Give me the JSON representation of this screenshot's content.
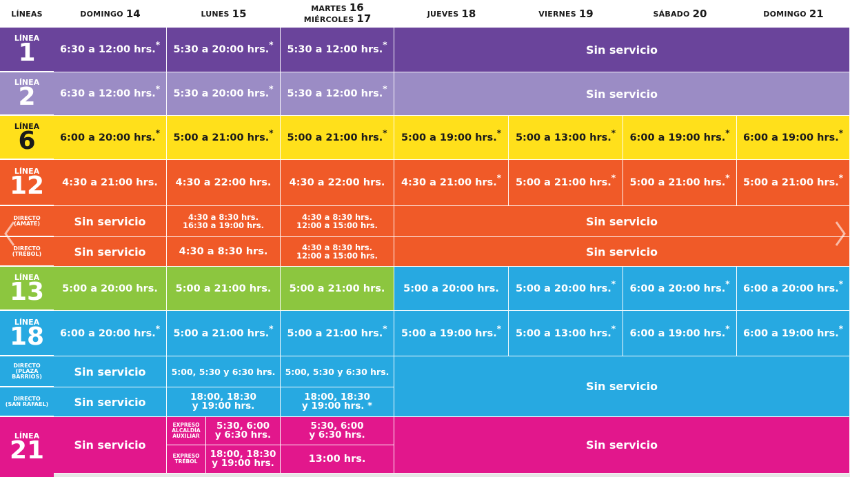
{
  "headers": {
    "lineas": "LÍNEAS",
    "dom14": {
      "day": "DOMINGO",
      "num": "14"
    },
    "lun15": {
      "day": "LUNES",
      "num": "15"
    },
    "mar16": {
      "day": "MARTES",
      "num": "16"
    },
    "mie17": {
      "day": "MIÉRCOLES",
      "num": "17"
    },
    "jue18": {
      "day": "JUEVES",
      "num": "18"
    },
    "vie19": {
      "day": "VIERNES",
      "num": "19"
    },
    "sab20": {
      "day": "SÁBADO",
      "num": "20"
    },
    "dom21": {
      "day": "DOMINGO",
      "num": "21"
    }
  },
  "labels": {
    "linea": "LÍNEA",
    "l1": "1",
    "l2": "2",
    "l6": "6",
    "l12": "12",
    "l13": "13",
    "l18": "18",
    "l21": "21",
    "directo_amate": "DIRECTO\n(AMATE)",
    "directo_trebol": "DIRECTO\n(TRÉBOL)",
    "directo_plaza": "DIRECTO\n(PLAZA\nBARRIOS)",
    "directo_sanrafael": "DIRECTO\n(SAN RAFAEL)",
    "expreso_alcaldia": "EXPRESO\nALCALDÍA\nAUXILIAR",
    "expreso_trebol": "EXPRESO\nTRÉBOL"
  },
  "colors": {
    "l1": "#6a449b",
    "l2": "#9b8cc5",
    "l6": "#ffe01b",
    "l12": "#f05a28",
    "l13": "#8cc63f",
    "l18": "#27a9e1",
    "l21": "#e2178c",
    "header": "#1a1a1a"
  },
  "star": "*",
  "cells": {
    "sin": "Sin servicio",
    "l1_d14": "6:30 a 12:00 hrs.",
    "l1_l15": "5:30 a 20:00 hrs.",
    "l1_m16": "5:30 a 12:00 hrs.",
    "l2_d14": "6:30 a 12:00 hrs.",
    "l2_l15": "5:30 a 20:00 hrs.",
    "l2_m16": "5:30 a 12:00 hrs.",
    "l6_d14": "6:00 a 20:00 hrs.",
    "l6_l15": "5:00 a 21:00 hrs.",
    "l6_m16": "5:00 a 21:00 hrs.",
    "l6_j18": "5:00 a 19:00 hrs.",
    "l6_v19": "5:00 a 13:00 hrs.",
    "l6_s20": "6:00 a 19:00 hrs.",
    "l6_d21": "6:00 a 19:00 hrs.",
    "l12_d14": "4:30 a 21:00 hrs.",
    "l12_l15": "4:30 a 22:00 hrs.",
    "l12_m16": "4:30 a 22:00 hrs.",
    "l12_j18": "4:30 a 21:00 hrs.",
    "l12_v19": "5:00 a 21:00 hrs.",
    "l12_s20": "5:00 a 21:00 hrs.",
    "l12_d21": "5:00 a 21:00 hrs.",
    "amate_l15": "4:30 a 8:30 hrs.\n16:30 a 19:00 hrs.",
    "amate_m16": "4:30 a 8:30 hrs.\n12:00 a 15:00 hrs.",
    "trebol_l15": "4:30 a 8:30 hrs.",
    "trebol_m16": "4:30 a 8:30 hrs.\n12:00 a 15:00 hrs.",
    "l13_d14": "5:00 a 20:00 hrs.",
    "l13_l15": "5:00 a 21:00 hrs.",
    "l13_m16": "5:00 a 21:00 hrs.",
    "l13_j18": "5:00 a 20:00 hrs.",
    "l13_v19": "5:00 a 20:00 hrs.",
    "l13_s20": "6:00 a 20:00 hrs.",
    "l13_d21": "6:00 a 20:00 hrs.",
    "l18_d14": "6:00 a 20:00 hrs.",
    "l18_l15": "5:00 a 21:00 hrs.",
    "l18_m16": "5:00 a 21:00 hrs.",
    "l18_j18": "5:00 a 19:00 hrs.",
    "l18_v19": "5:00 a 13:00 hrs.",
    "l18_s20": "6:00 a 19:00 hrs.",
    "l18_d21": "6:00 a 19:00 hrs.",
    "plaza_l15": "5:00, 5:30 y 6:30 hrs.",
    "plaza_m16": "5:00, 5:30 y 6:30 hrs.",
    "sanrafael_l15": "18:00, 18:30\ny 19:00 hrs.",
    "sanrafael_m16": "18:00, 18:30\ny 19:00 hrs. *",
    "l21_alc_l15": "5:30, 6:00\ny 6:30 hrs.",
    "l21_alc_m16": "5:30, 6:00\ny 6:30 hrs.",
    "l21_tre_l15": "18:00, 18:30\ny 19:00 hrs.",
    "l21_tre_m16": "13:00 hrs."
  }
}
